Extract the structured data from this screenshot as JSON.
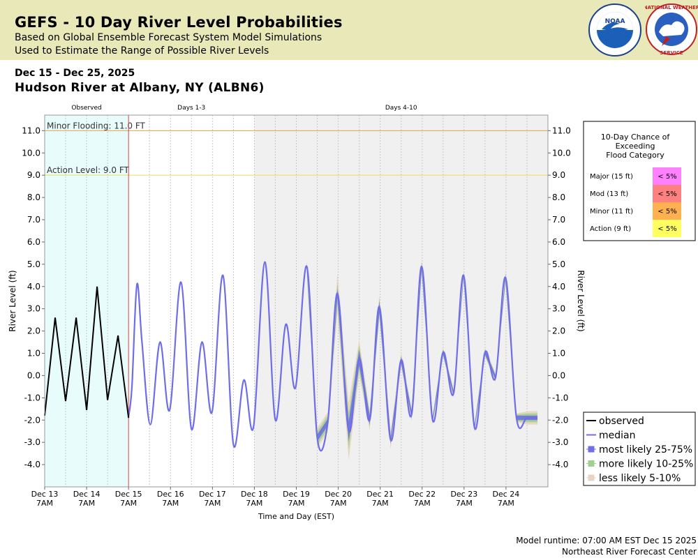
{
  "header": {
    "title": "GEFS - 10 Day River Level Probabilities",
    "subtitle1": "Based on Global Ensemble Forecast System Model Simulations",
    "subtitle2": "Used to Estimate the Range of Possible River Levels"
  },
  "date_range": "Dec 15 - Dec 25, 2025",
  "location": "Hudson River at Albany, NY (ALBN6)",
  "footer": {
    "runtime": "Model runtime: 07:00 AM EST Dec 15 2025",
    "center": "Northeast River Forecast Center"
  },
  "colors": {
    "header_bg": "#e8e8b8",
    "observed_bg": "#e8fcfc",
    "days4_bg": "#f0f0f0",
    "median": "#6e6ee8",
    "band_25_75": "#7070e0",
    "band_10_25": "#a0d090",
    "band_5_10": "#e8d4c0",
    "minor_line": "#e8a050",
    "action_line": "#e8dc60",
    "now_line": "#e04040"
  },
  "chart_data": {
    "type": "line",
    "xlabel": "Time and Day (EST)",
    "ylabel_left": "River Level (ft)",
    "ylabel_right": "River Level (ft)",
    "ylim": [
      -5.0,
      11.7
    ],
    "xlim_days": [
      0,
      12
    ],
    "yticks": [
      11.0,
      10.0,
      9.0,
      8.0,
      7.0,
      6.0,
      5.0,
      4.0,
      3.0,
      2.0,
      1.0,
      0.0,
      -1.0,
      -2.0,
      -3.0,
      -4.0
    ],
    "ytick_labels": [
      "11.0",
      "10.0",
      "9.0",
      "8.0",
      "7.0",
      "6.0",
      "5.0",
      "4.0",
      "3.0",
      "2.0",
      "1.0",
      "0.0",
      "-1.0",
      "-2.0",
      "-3.0",
      "-4.0"
    ],
    "xtick_labels": [
      {
        "day": "Dec 13",
        "time": "7AM"
      },
      {
        "day": "Dec 14",
        "time": "7AM"
      },
      {
        "day": "Dec 15",
        "time": "7AM"
      },
      {
        "day": "Dec 16",
        "time": "7AM"
      },
      {
        "day": "Dec 17",
        "time": "7AM"
      },
      {
        "day": "Dec 18",
        "time": "7AM"
      },
      {
        "day": "Dec 19",
        "time": "7AM"
      },
      {
        "day": "Dec 20",
        "time": "7AM"
      },
      {
        "day": "Dec 21",
        "time": "7AM"
      },
      {
        "day": "Dec 22",
        "time": "7AM"
      },
      {
        "day": "Dec 23",
        "time": "7AM"
      },
      {
        "day": "Dec 24",
        "time": "7AM"
      }
    ],
    "periods": [
      {
        "label": "Observed",
        "start": 0,
        "end": 2
      },
      {
        "label": "Days 1-3",
        "start": 2,
        "end": 5
      },
      {
        "label": "Days 4-10",
        "start": 5,
        "end": 12
      }
    ],
    "thresholds": [
      {
        "label": "Minor Flooding: 11.0 FT",
        "value": 11.0
      },
      {
        "label": "Action Level: 9.0 FT",
        "value": 9.0
      }
    ],
    "observed": {
      "name": "observed",
      "x": [
        0,
        0.25,
        0.5,
        0.75,
        1.0,
        1.25,
        1.5,
        1.75,
        2.0
      ],
      "y": [
        -1.8,
        2.6,
        -1.15,
        2.6,
        -1.55,
        4.0,
        -1.1,
        1.8,
        -1.9
      ]
    },
    "forecast": {
      "name": "median",
      "x": [
        2.0,
        2.08,
        2.2,
        2.32,
        2.52,
        2.75,
        2.98,
        3.25,
        3.5,
        3.75,
        3.99,
        4.25,
        4.5,
        4.75,
        4.98,
        5.25,
        5.5,
        5.75,
        5.98,
        6.25,
        6.5,
        6.75,
        6.98,
        7.25,
        7.5,
        7.75,
        7.98,
        8.25,
        8.5,
        8.75,
        8.99,
        9.25,
        9.5,
        9.75,
        9.99,
        10.25,
        10.5,
        10.75,
        10.99,
        11.25,
        11.5,
        11.75
      ],
      "y": [
        -1.85,
        -0.5,
        4.1,
        1.5,
        -2.2,
        1.5,
        -1.55,
        4.2,
        -2.4,
        1.5,
        -1.65,
        4.5,
        -3.1,
        -0.2,
        -2.3,
        5.1,
        -2.0,
        2.3,
        -0.55,
        4.9,
        -2.8,
        -2.1,
        3.7,
        -2.5,
        0.8,
        -2.0,
        3.1,
        -2.9,
        0.7,
        -1.75,
        4.9,
        -2.0,
        1.05,
        -0.8,
        4.5,
        -2.35,
        1.05,
        -0.1,
        4.4,
        -1.9,
        -1.9,
        -1.9
      ],
      "band_start_day": 6.0,
      "half_width_25_75": [
        0.1,
        0.15,
        0.15,
        0.2,
        0.45,
        0.35,
        0.2,
        0.25,
        0.15,
        0.15,
        0.15,
        0.15,
        0.1,
        0.1,
        0.1,
        0.1,
        0.1,
        0.1,
        0.1,
        0.1,
        0.1,
        0.1,
        0.1
      ],
      "half_width_10_25": [
        0.2,
        0.3,
        0.3,
        0.45,
        0.8,
        0.55,
        0.3,
        0.35,
        0.2,
        0.2,
        0.2,
        0.2,
        0.15,
        0.15,
        0.15,
        0.15,
        0.15,
        0.15,
        0.15,
        0.2,
        0.15,
        0.2,
        0.2
      ],
      "half_width_5_10": [
        0.3,
        0.45,
        0.45,
        0.9,
        1.3,
        0.8,
        0.45,
        0.5,
        0.4,
        0.35,
        0.3,
        0.3,
        0.2,
        0.2,
        0.2,
        0.2,
        0.2,
        0.2,
        0.2,
        0.3,
        0.2,
        0.3,
        0.3
      ]
    },
    "legend": {
      "position": "bottom-right",
      "items": [
        {
          "label": "observed",
          "kind": "observed"
        },
        {
          "label": "median",
          "kind": "median"
        },
        {
          "label": "most likely 25-75%",
          "kind": "band_25_75"
        },
        {
          "label": "more likely 10-25%",
          "kind": "band_10_25"
        },
        {
          "label": "less likely 5-10%",
          "kind": "band_5_10"
        }
      ]
    },
    "flood_chance": {
      "title_lines": [
        "10-Day Chance of",
        "Exceeding",
        "Flood Category"
      ],
      "rows": [
        {
          "category": "Major (15 ft)",
          "chance": "< 5%",
          "color": "#ff80ff"
        },
        {
          "category": "Mod (13 ft)",
          "chance": "< 5%",
          "color": "#ff8080"
        },
        {
          "category": "Minor (11 ft)",
          "chance": "< 5%",
          "color": "#ffb050"
        },
        {
          "category": "Action (9 ft)",
          "chance": "< 5%",
          "color": "#ffff60"
        }
      ]
    }
  }
}
